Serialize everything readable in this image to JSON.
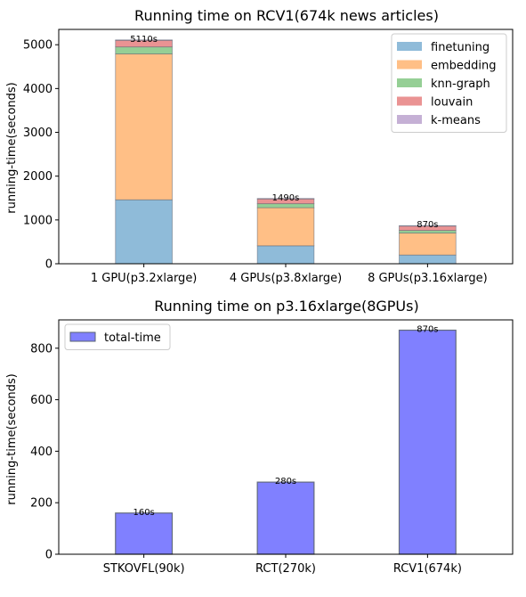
{
  "chart_data": [
    {
      "type": "bar",
      "stacked": true,
      "title": "Running time on RCV1(674k news articles)",
      "xlabel": "",
      "ylabel": "running-time(seconds)",
      "categories": [
        "1 GPU(p3.2xlarge)",
        "4 GPUs(p3.8xlarge)",
        "8 GPUs(p3.16xlarge)"
      ],
      "series": [
        {
          "name": "finetuning",
          "values": [
            1460,
            410,
            200
          ],
          "color": "#8fbbd9"
        },
        {
          "name": "embedding",
          "values": [
            3330,
            870,
            500
          ],
          "color": "#ffbf86"
        },
        {
          "name": "knn-graph",
          "values": [
            160,
            90,
            60
          ],
          "color": "#95cf95"
        },
        {
          "name": "louvain",
          "values": [
            150,
            110,
            100
          ],
          "color": "#ea9393"
        },
        {
          "name": "k-means",
          "values": [
            10,
            10,
            10
          ],
          "color": "#c5b0d5"
        }
      ],
      "bar_labels": [
        "5110s",
        "1490s",
        "870s"
      ],
      "ylim": [
        0,
        5350
      ],
      "yticks": [
        0,
        1000,
        2000,
        3000,
        4000,
        5000
      ],
      "grid": false,
      "legend": "top-right"
    },
    {
      "type": "bar",
      "title": "Running time on p3.16xlarge(8GPUs)",
      "xlabel": "",
      "ylabel": "running-time(seconds)",
      "categories": [
        "STKOVFL(90k)",
        "RCT(270k)",
        "RCV1(674k)"
      ],
      "series": [
        {
          "name": "total-time",
          "values": [
            160,
            280,
            870
          ],
          "color": "#8080ff"
        }
      ],
      "bar_labels": [
        "160s",
        "280s",
        "870s"
      ],
      "ylim": [
        0,
        910
      ],
      "yticks": [
        0,
        200,
        400,
        600,
        800
      ],
      "grid": false,
      "legend": "top-left"
    }
  ]
}
